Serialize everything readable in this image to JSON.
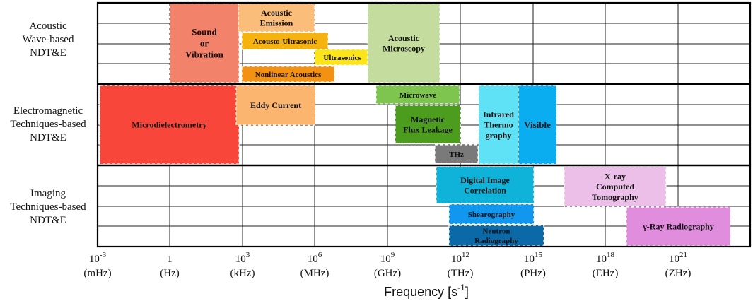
{
  "row_labels": [
    [
      "Acoustic",
      "Wave-based",
      "NDT&E"
    ],
    [
      "Electromagnetic",
      "Techniques-based",
      "NDT&E"
    ],
    [
      "Imaging",
      "Techniques-based",
      "NDT&E"
    ]
  ],
  "x_axis": {
    "title": "Frequency",
    "unit_base": "[s",
    "unit_exp": "-1",
    "unit_close": "]",
    "ticks": [
      {
        "base": "10",
        "exp": "-3",
        "unit": "(mHz)"
      },
      {
        "base": "1",
        "exp": "",
        "unit": "(Hz)"
      },
      {
        "base": "10",
        "exp": "3",
        "unit": "(kHz)"
      },
      {
        "base": "10",
        "exp": "6",
        "unit": "(MHz)"
      },
      {
        "base": "10",
        "exp": "9",
        "unit": "(GHz)"
      },
      {
        "base": "10",
        "exp": "12",
        "unit": "(THz)"
      },
      {
        "base": "10",
        "exp": "15",
        "unit": "(PHz)"
      },
      {
        "base": "10",
        "exp": "18",
        "unit": "(EHz)"
      },
      {
        "base": "10",
        "exp": "21",
        "unit": "(ZHz)"
      }
    ]
  },
  "techniques": [
    {
      "name": "sound-or-vibration",
      "lines": [
        "Sound",
        "or",
        "Vibration"
      ],
      "color": "#f2826a"
    },
    {
      "name": "acoustic-emission",
      "lines": [
        "Acoustic",
        "Emission"
      ],
      "color": "#fbbd7a"
    },
    {
      "name": "acousto-ultrasonic",
      "lines": [
        "Acousto-Ultrasonic"
      ],
      "color": "#f6b20f"
    },
    {
      "name": "ultrasonics",
      "lines": [
        "Ultrasonics"
      ],
      "color": "#fbe417"
    },
    {
      "name": "nonlinear-acoustics",
      "lines": [
        "Nonlinear Acoustics"
      ],
      "color": "#f39112"
    },
    {
      "name": "acoustic-microscopy",
      "lines": [
        "Acoustic",
        "Microscopy"
      ],
      "color": "#c4dc9e"
    },
    {
      "name": "microdielectrometry",
      "lines": [
        "Microdielectrometry"
      ],
      "color": "#f8473a"
    },
    {
      "name": "eddy-current",
      "lines": [
        "Eddy Current"
      ],
      "color": "#fbb56f"
    },
    {
      "name": "microwave",
      "lines": [
        "Microwave"
      ],
      "color": "#7ec550"
    },
    {
      "name": "magnetic-flux-leakage",
      "lines": [
        "Magnetic",
        "Flux Leakage"
      ],
      "color": "#4c9c1d"
    },
    {
      "name": "thz",
      "lines": [
        "THz"
      ],
      "color": "#7a7a7a"
    },
    {
      "name": "infrared-thermography",
      "lines": [
        "Infrared",
        "Thermo",
        "graphy"
      ],
      "color": "#5fe2f5"
    },
    {
      "name": "visible",
      "lines": [
        "Visible"
      ],
      "color": "#0aaef0"
    },
    {
      "name": "digital-image-correlation",
      "lines": [
        "Digital Image",
        "Correlation"
      ],
      "color": "#0fb2d8"
    },
    {
      "name": "shearography",
      "lines": [
        "Shearography"
      ],
      "color": "#1197ee"
    },
    {
      "name": "neutron-radiography",
      "lines": [
        "Neutron",
        "Radiography"
      ],
      "color": "#0b69a8"
    },
    {
      "name": "x-ray-computed-tomography",
      "lines": [
        "X-ray",
        "Computed",
        "Tomography"
      ],
      "color": "#ecbfe9"
    },
    {
      "name": "gamma-ray-radiography",
      "lines": [
        "γ-Ray Radiography"
      ],
      "color": "#df8ddc"
    }
  ]
}
